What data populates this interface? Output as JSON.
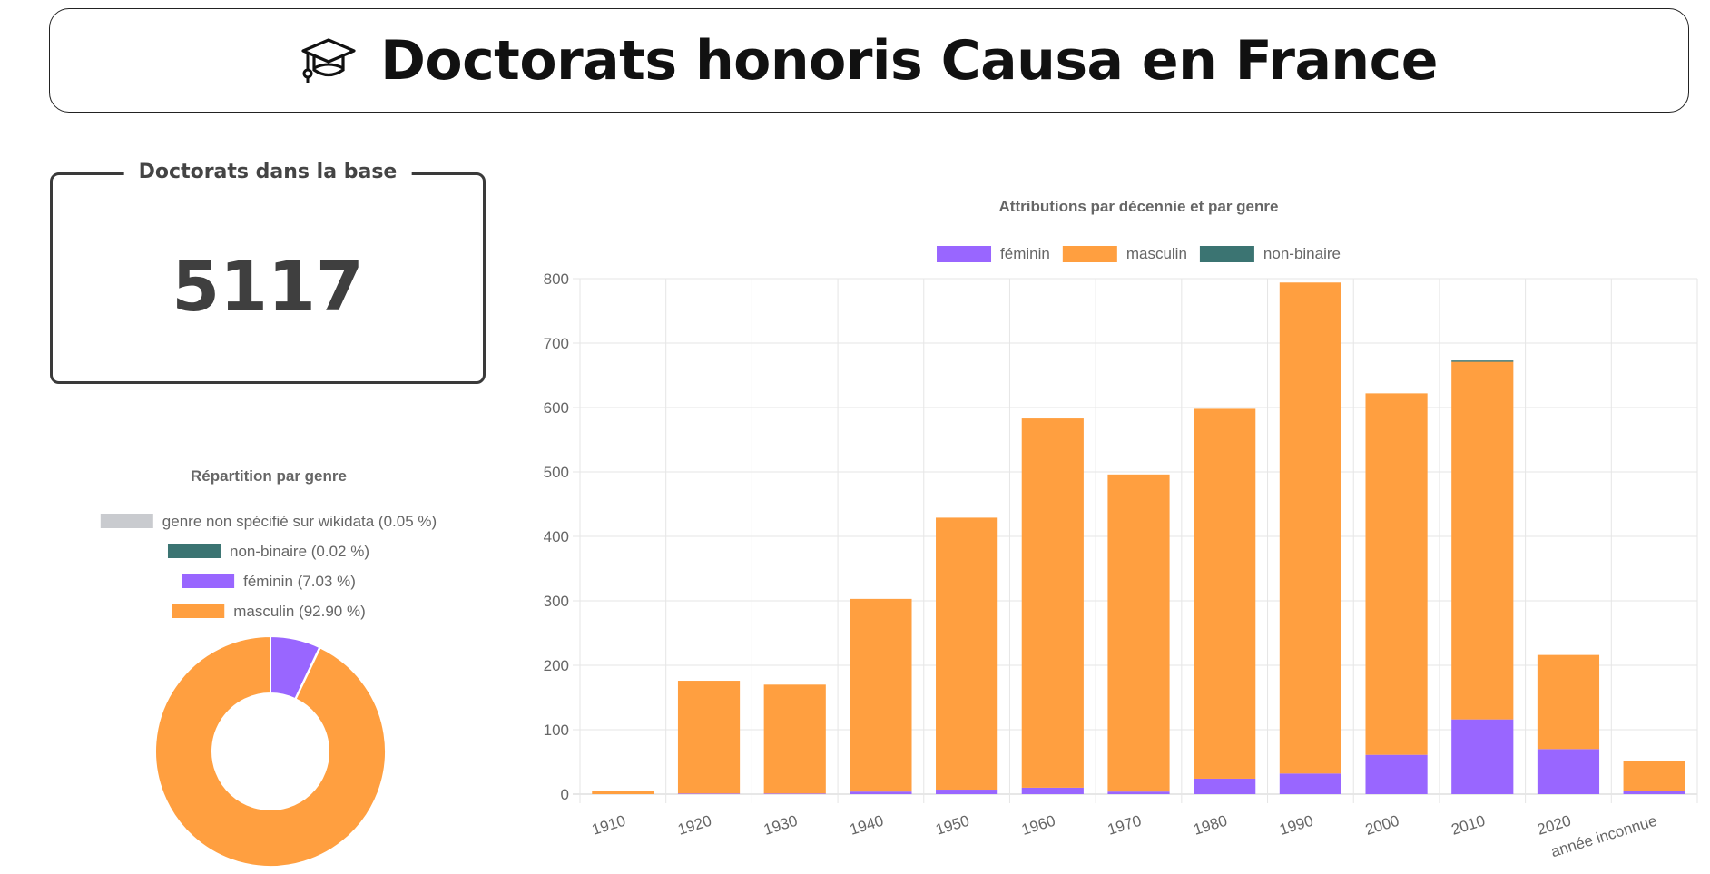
{
  "header": {
    "title": "Doctorats honoris Causa en France",
    "icon": "graduation-cap-icon"
  },
  "count_card": {
    "label": "Doctorats dans la base",
    "value": "5117"
  },
  "colors": {
    "feminin": "#9966ff",
    "masculin": "#ff9f40",
    "non_binaire": "#3b7472",
    "non_specifie": "#c9cbcf"
  },
  "chart_data": [
    {
      "type": "doughnut",
      "title": "Répartition par genre",
      "legend": [
        {
          "label": "genre non spécifié sur wikidata (0.05 %)",
          "key": "non_specifie",
          "value": 0.05
        },
        {
          "label": "non-binaire (0.02 %)",
          "key": "non_binaire",
          "value": 0.02
        },
        {
          "label": "féminin (7.03 %)",
          "key": "feminin",
          "value": 7.03
        },
        {
          "label": "masculin (92.90 %)",
          "key": "masculin",
          "value": 92.9
        }
      ]
    },
    {
      "type": "bar",
      "stacked": true,
      "title": "Attributions par décennie et par genre",
      "legend_position": "top",
      "categories": [
        "1910",
        "1920",
        "1930",
        "1940",
        "1950",
        "1960",
        "1970",
        "1980",
        "1990",
        "2000",
        "2010",
        "2020",
        "année inconnue"
      ],
      "series": [
        {
          "name": "féminin",
          "key": "feminin",
          "values": [
            0,
            1,
            1,
            4,
            7,
            10,
            4,
            24,
            32,
            61,
            116,
            70,
            5
          ]
        },
        {
          "name": "masculin",
          "key": "masculin",
          "values": [
            5,
            175,
            169,
            299,
            422,
            573,
            492,
            574,
            762,
            561,
            555,
            146,
            46
          ]
        },
        {
          "name": "non-binaire",
          "key": "non_binaire",
          "values": [
            0,
            0,
            0,
            0,
            0,
            0,
            0,
            0,
            0,
            0,
            2,
            0,
            0
          ]
        }
      ],
      "ylim": [
        0,
        800
      ],
      "yticks": [
        "0",
        "100",
        "200",
        "300",
        "400",
        "500",
        "600",
        "700",
        "800"
      ],
      "grid": true
    }
  ]
}
